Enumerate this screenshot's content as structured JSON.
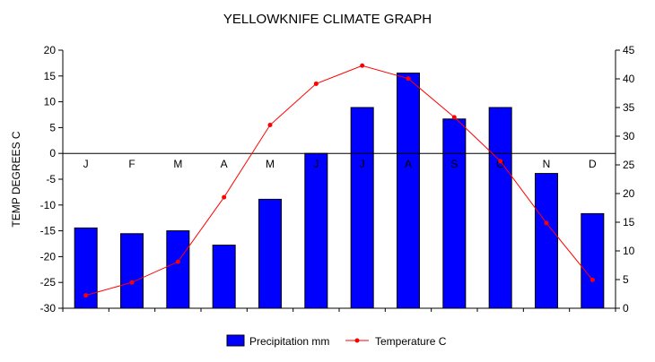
{
  "chart_data": {
    "type": "bar",
    "title": "YELLOWKNIFE CLIMATE GRAPH",
    "ylabel": "TEMP DEGREES C",
    "y2label": "",
    "categories": [
      "J",
      "F",
      "M",
      "A",
      "M",
      "J",
      "J",
      "A",
      "S",
      "O",
      "N",
      "D"
    ],
    "ylim": [
      -30,
      20
    ],
    "y_ticks": [
      20,
      15,
      10,
      5,
      0,
      -5,
      -10,
      -15,
      -20,
      -25,
      -30
    ],
    "y2lim": [
      0,
      45
    ],
    "y2_ticks": [
      45,
      40,
      35,
      30,
      25,
      20,
      15,
      10,
      5,
      0
    ],
    "series": [
      {
        "name": "Precipitation mm",
        "type": "bar",
        "axis": "right",
        "color": "#0000ff",
        "values": [
          14,
          13,
          13.5,
          11,
          19,
          27,
          35,
          41,
          33,
          35,
          23.5,
          16.5
        ]
      },
      {
        "name": "Temperature C",
        "type": "line",
        "axis": "left",
        "color": "#ff0000",
        "values": [
          -27.5,
          -25,
          -21,
          -8.5,
          5.5,
          13.5,
          17,
          14.5,
          7,
          -1.5,
          -13.5,
          -24.5
        ]
      }
    ],
    "legend_position": "bottom-center",
    "grid": false
  }
}
